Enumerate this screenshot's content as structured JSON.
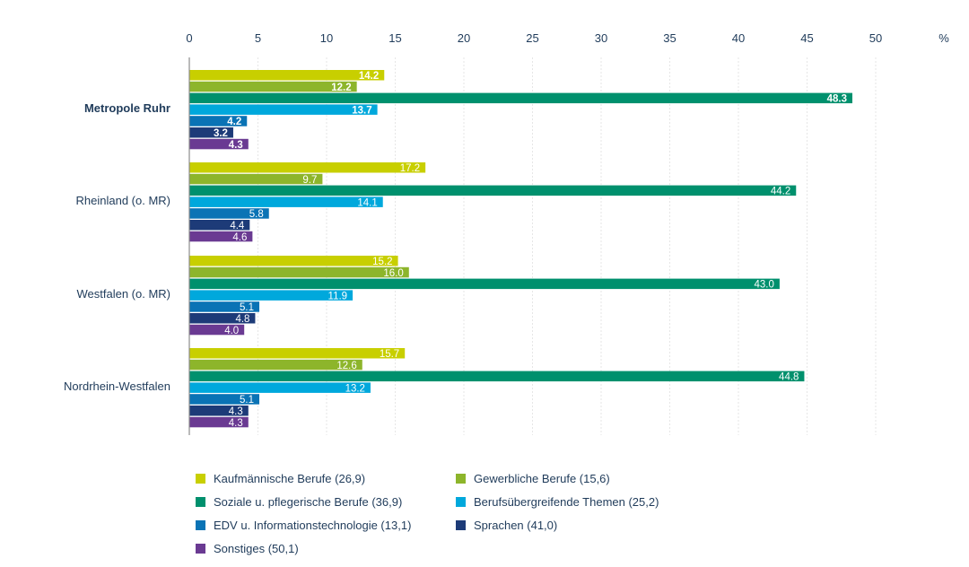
{
  "chart_data": {
    "type": "bar",
    "orientation": "horizontal",
    "unit": "%",
    "xlim": [
      0,
      50
    ],
    "x_ticks": [
      "0",
      "5",
      "10",
      "15",
      "20",
      "25",
      "30",
      "35",
      "40",
      "45",
      "50"
    ],
    "categories": [
      "Metropole Ruhr",
      "Rheinland (o. MR)",
      "Westfalen (o. MR)",
      "Nordrhein-Westfalen"
    ],
    "highlight_category": "Metropole Ruhr",
    "series": [
      {
        "name": "Kaufmännische Berufe (26,9)",
        "color": "#c8cf00",
        "values": [
          14.2,
          17.2,
          15.2,
          15.7
        ],
        "labels": [
          "14.2",
          "17.2",
          "15.2",
          "15.7"
        ]
      },
      {
        "name": "Gewerbliche Berufe (15,6)",
        "color": "#8db52b",
        "values": [
          12.2,
          9.7,
          16.0,
          12.6
        ],
        "labels": [
          "12.2",
          "9.7",
          "16.0",
          "12.6"
        ]
      },
      {
        "name": "Soziale u. pflegerische Berufe (36,9)",
        "color": "#00906d",
        "values": [
          48.3,
          44.2,
          43.0,
          44.8
        ],
        "labels": [
          "48.3",
          "44.2",
          "43.0",
          "44.8"
        ]
      },
      {
        "name": "Berufsübergreifende Themen (25,2)",
        "color": "#00a8dc",
        "values": [
          13.7,
          14.1,
          11.9,
          13.2
        ],
        "labels": [
          "13.7",
          "14.1",
          "11.9",
          "13.2"
        ]
      },
      {
        "name": "EDV u. Informationstechnologie (13,1)",
        "color": "#0a73b5",
        "values": [
          4.2,
          5.8,
          5.1,
          5.1
        ],
        "labels": [
          "4.2",
          "5.8",
          "5.1",
          "5.1"
        ]
      },
      {
        "name": "Sprachen (41,0)",
        "color": "#1d3b78",
        "values": [
          3.2,
          4.4,
          4.8,
          4.3
        ],
        "labels": [
          "3.2",
          "4.4",
          "4.8",
          "4.3"
        ]
      },
      {
        "name": "Sonstiges (50,1)",
        "color": "#6a3a92",
        "values": [
          4.3,
          4.6,
          4.0,
          4.3
        ],
        "labels": [
          "4.3",
          "4.6",
          "4.0",
          "4.3"
        ]
      }
    ]
  }
}
